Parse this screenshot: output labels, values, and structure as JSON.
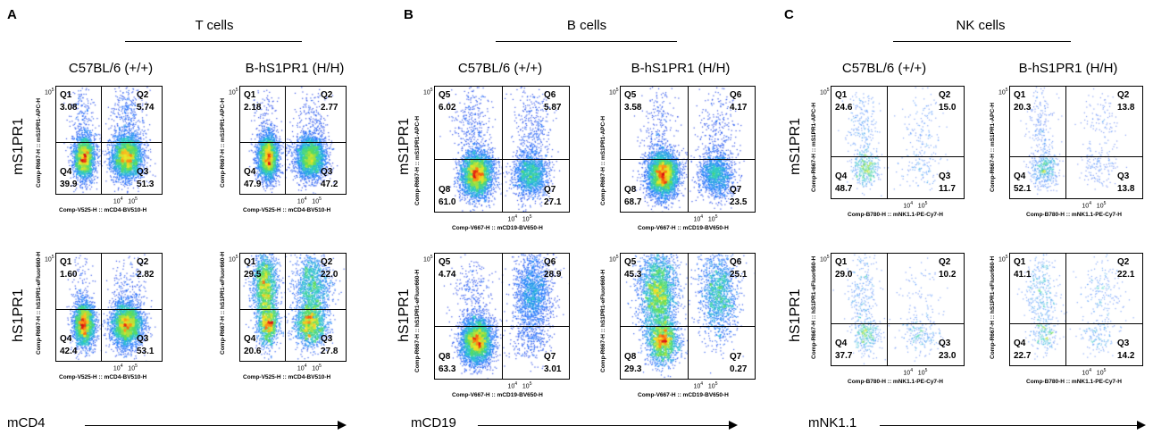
{
  "panels": [
    {
      "letter": "A",
      "group_title": "T cells",
      "marker": "mCD4",
      "strains": [
        "C57BL/6 (+/+)",
        "B-hS1PR1 (H/H)"
      ],
      "row_labels": [
        "mS1PR1",
        "hS1PR1"
      ],
      "x_axis_label": "Comp-V525-H :: mCD4-BV510-H",
      "y_axis_labels": [
        "Comp-R667-H :: mS1PR1-APC-H",
        "Comp-R667-H :: hS1PR1-eFluor660-H"
      ],
      "quadrant_names": [
        "Q1",
        "Q2",
        "Q4",
        "Q3"
      ]
    },
    {
      "letter": "B",
      "group_title": "B cells",
      "marker": "mCD19",
      "strains": [
        "C57BL/6 (+/+)",
        "B-hS1PR1 (H/H)"
      ],
      "row_labels": [
        "mS1PR1",
        "hS1PR1"
      ],
      "x_axis_label": "Comp-V667-H :: mCD19-BV650-H",
      "y_axis_labels": [
        "Comp-R667-H :: mS1PR1-APC-H",
        "Comp-R667-H :: hS1PR1-eFluor660-H"
      ],
      "quadrant_names": [
        "Q5",
        "Q6",
        "Q8",
        "Q7"
      ]
    },
    {
      "letter": "C",
      "group_title": "NK cells",
      "marker": "mNK1.1",
      "strains": [
        "C57BL/6 (+/+)",
        "B-hS1PR1 (H/H)"
      ],
      "row_labels": [
        "mS1PR1",
        "hS1PR1"
      ],
      "x_axis_label": "Comp-B780-H :: mNK1.1-PE-Cy7-H",
      "y_axis_labels": [
        "Comp-R667-H :: mS1PR1-APC-H",
        "Comp-R667-H :: hS1PR1-eFluor660-H"
      ],
      "quadrant_names": [
        "Q1",
        "Q2",
        "Q4",
        "Q3"
      ]
    }
  ],
  "chart_data": [
    {
      "type": "scatter",
      "panel": "A",
      "strain": "C57BL/6 (+/+)",
      "stain": "mS1PR1",
      "quadrants": {
        "upper_left": "3.08",
        "upper_right": "5.74",
        "lower_left": "39.9",
        "lower_right": "51.3"
      }
    },
    {
      "type": "scatter",
      "panel": "A",
      "strain": "B-hS1PR1 (H/H)",
      "stain": "mS1PR1",
      "quadrants": {
        "upper_left": "2.18",
        "upper_right": "2.77",
        "lower_left": "47.9",
        "lower_right": "47.2"
      }
    },
    {
      "type": "scatter",
      "panel": "A",
      "strain": "C57BL/6 (+/+)",
      "stain": "hS1PR1",
      "quadrants": {
        "upper_left": "1.60",
        "upper_right": "2.82",
        "lower_left": "42.4",
        "lower_right": "53.1"
      }
    },
    {
      "type": "scatter",
      "panel": "A",
      "strain": "B-hS1PR1 (H/H)",
      "stain": "hS1PR1",
      "quadrants": {
        "upper_left": "29.5",
        "upper_right": "22.0",
        "lower_left": "20.6",
        "lower_right": "27.8"
      }
    },
    {
      "type": "scatter",
      "panel": "B",
      "strain": "C57BL/6 (+/+)",
      "stain": "mS1PR1",
      "quadrants": {
        "upper_left": "6.02",
        "upper_right": "5.87",
        "lower_left": "61.0",
        "lower_right": "27.1"
      }
    },
    {
      "type": "scatter",
      "panel": "B",
      "strain": "B-hS1PR1 (H/H)",
      "stain": "mS1PR1",
      "quadrants": {
        "upper_left": "3.58",
        "upper_right": "4.17",
        "lower_left": "68.7",
        "lower_right": "23.5"
      }
    },
    {
      "type": "scatter",
      "panel": "B",
      "strain": "C57BL/6 (+/+)",
      "stain": "hS1PR1",
      "quadrants": {
        "upper_left": "4.74",
        "upper_right": "28.9",
        "lower_left": "63.3",
        "lower_right": "3.01"
      }
    },
    {
      "type": "scatter",
      "panel": "B",
      "strain": "B-hS1PR1 (H/H)",
      "stain": "hS1PR1",
      "quadrants": {
        "upper_left": "45.3",
        "upper_right": "25.1",
        "lower_left": "29.3",
        "lower_right": "0.27"
      }
    },
    {
      "type": "scatter",
      "panel": "C",
      "strain": "C57BL/6 (+/+)",
      "stain": "mS1PR1",
      "quadrants": {
        "upper_left": "24.6",
        "upper_right": "15.0",
        "lower_left": "48.7",
        "lower_right": "11.7"
      }
    },
    {
      "type": "scatter",
      "panel": "C",
      "strain": "B-hS1PR1 (H/H)",
      "stain": "mS1PR1",
      "quadrants": {
        "upper_left": "20.3",
        "upper_right": "13.8",
        "lower_left": "52.1",
        "lower_right": "13.8"
      }
    },
    {
      "type": "scatter",
      "panel": "C",
      "strain": "C57BL/6 (+/+)",
      "stain": "hS1PR1",
      "quadrants": {
        "upper_left": "29.0",
        "upper_right": "10.2",
        "lower_left": "37.7",
        "lower_right": "23.0"
      }
    },
    {
      "type": "scatter",
      "panel": "C",
      "strain": "B-hS1PR1 (H/H)",
      "stain": "hS1PR1",
      "quadrants": {
        "upper_left": "41.1",
        "upper_right": "22.1",
        "lower_left": "22.7",
        "lower_right": "14.2"
      }
    }
  ]
}
